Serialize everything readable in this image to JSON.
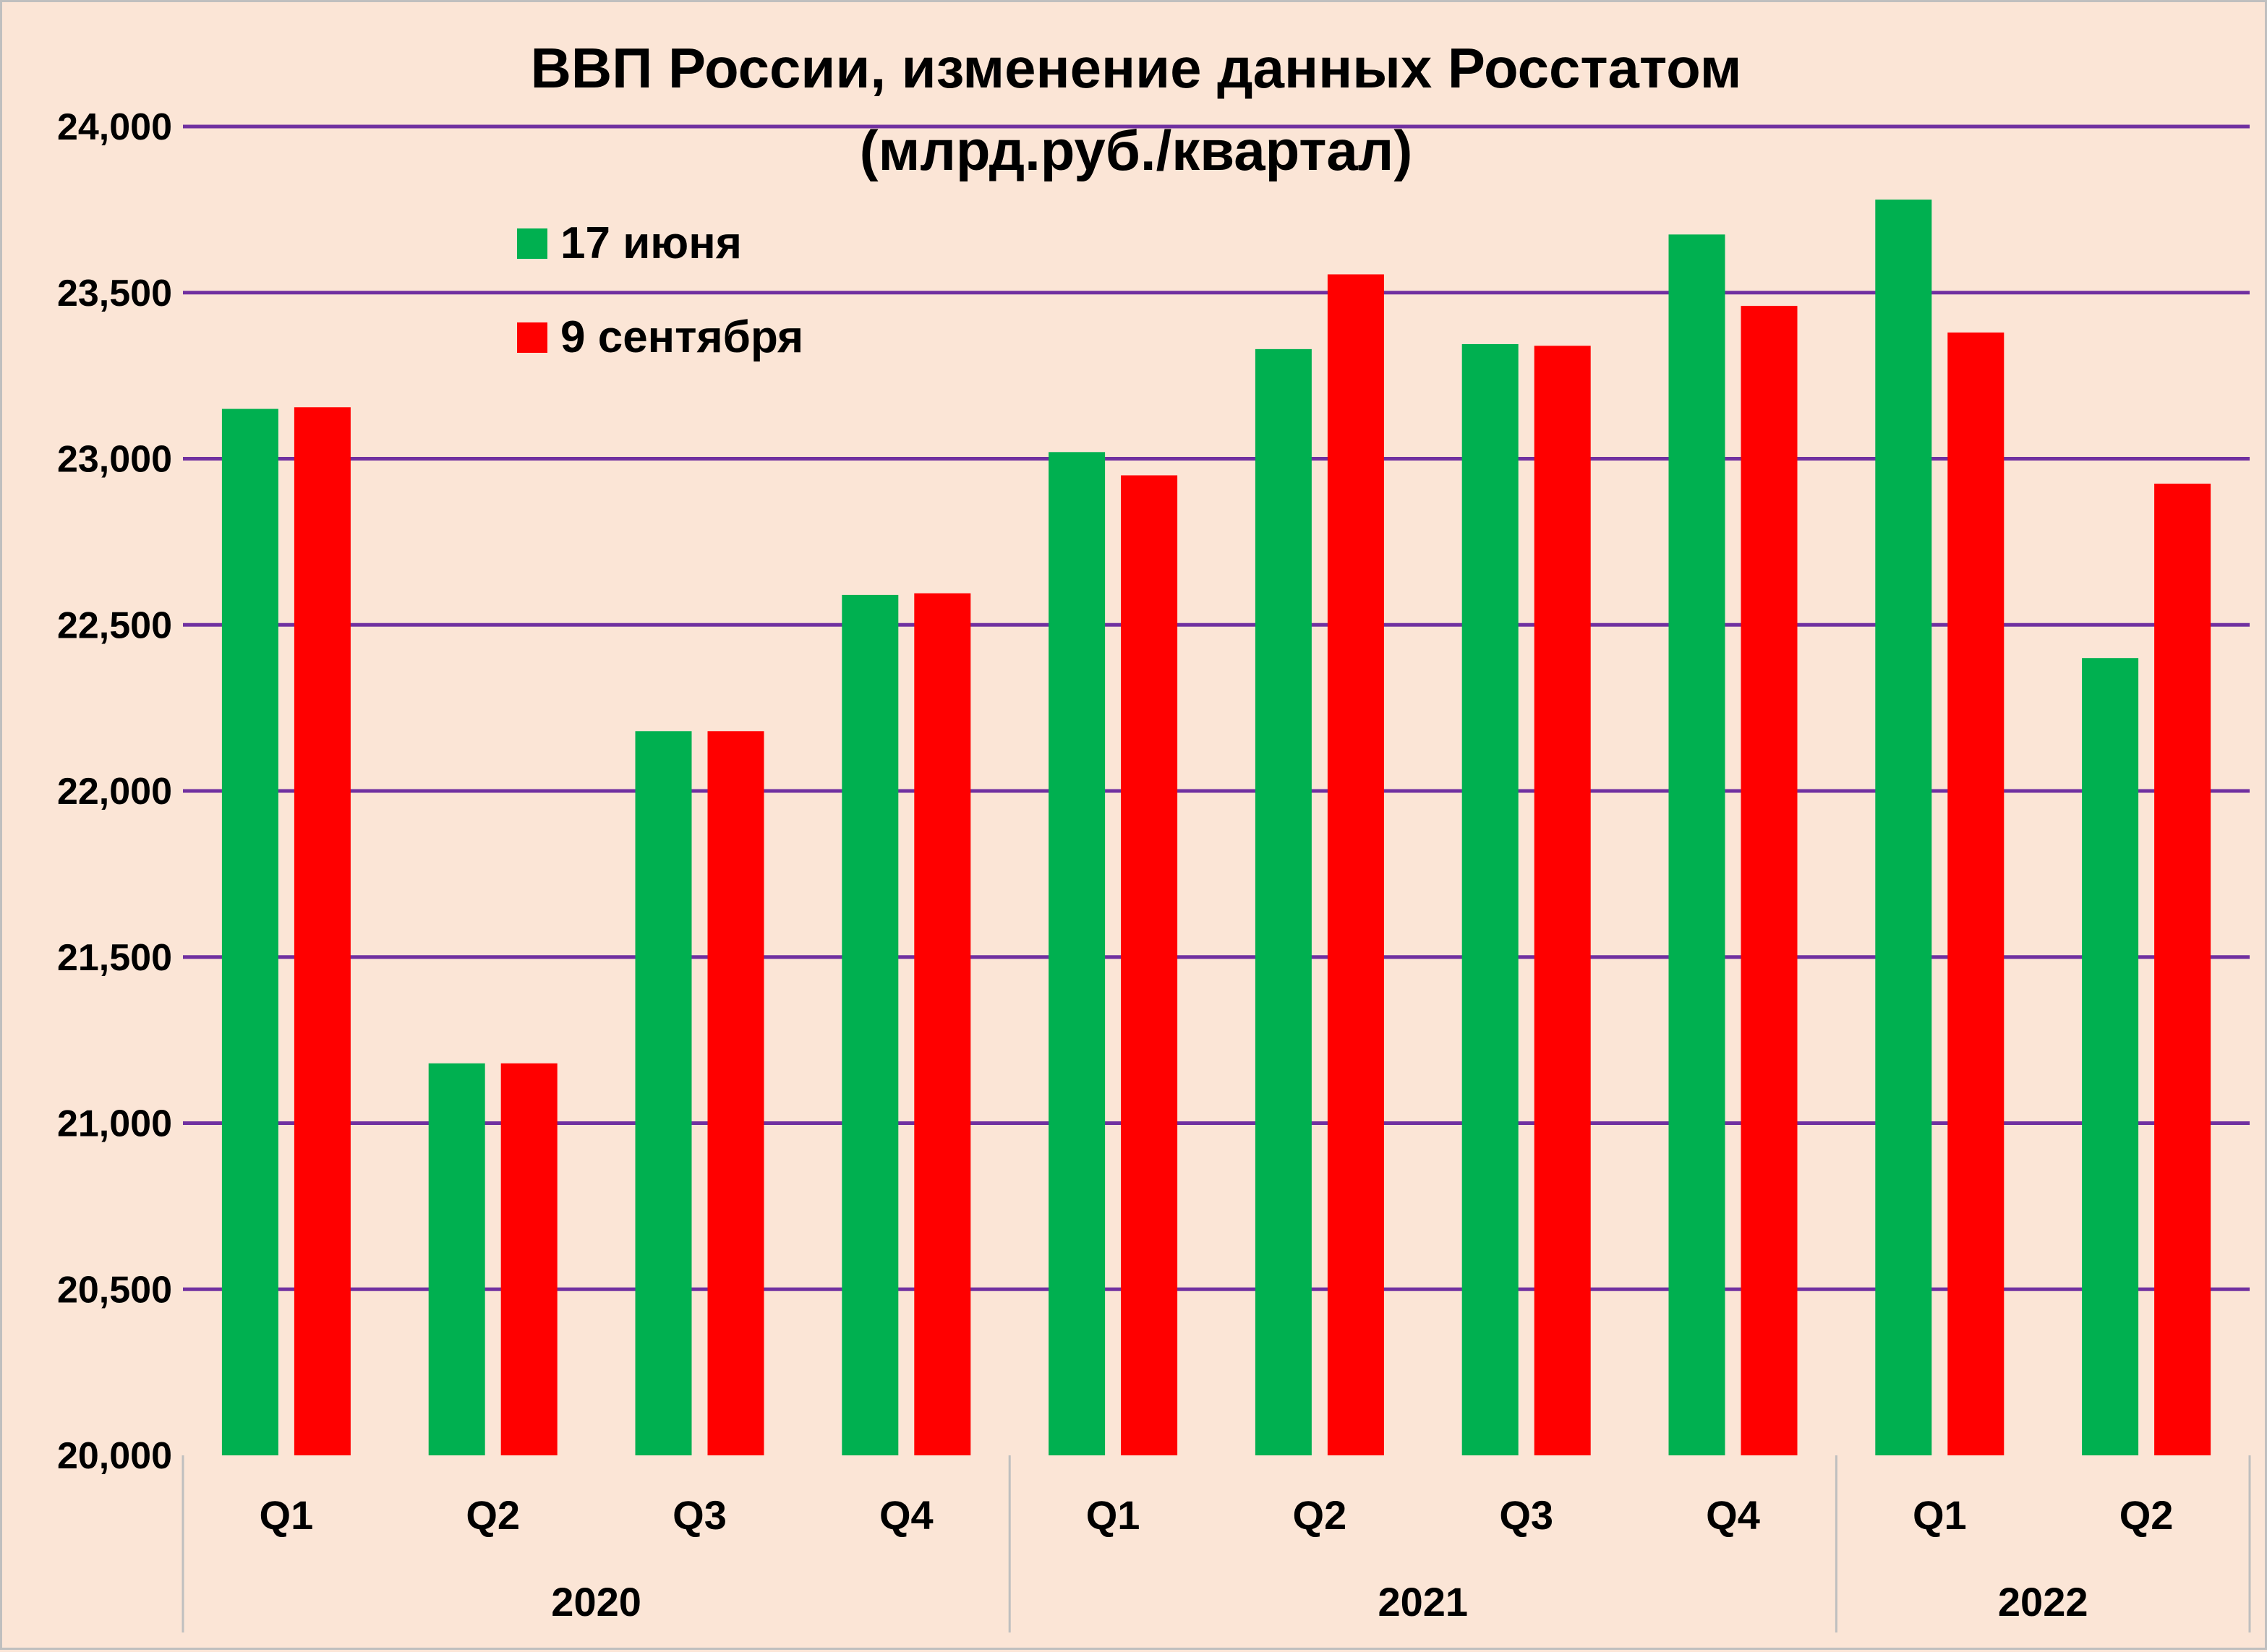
{
  "chart_data": {
    "type": "bar",
    "title": "ВВП России, изменение данных Росстатом",
    "subtitle": "(млрд.руб./квартал)",
    "categories": [
      "Q1",
      "Q2",
      "Q3",
      "Q4",
      "Q1",
      "Q2",
      "Q3",
      "Q4",
      "Q1",
      "Q2"
    ],
    "groups": [
      {
        "label": "2020",
        "count": 4
      },
      {
        "label": "2021",
        "count": 4
      },
      {
        "label": "2022",
        "count": 2
      }
    ],
    "series": [
      {
        "name": "17 июня",
        "color": "#00b050",
        "values": [
          23150,
          21180,
          22180,
          22590,
          23020,
          23330,
          23345,
          23675,
          23780,
          22400
        ]
      },
      {
        "name": "9 сентября",
        "color": "#ff0000",
        "values": [
          23155,
          21180,
          22180,
          22595,
          22950,
          23555,
          23340,
          23460,
          23380,
          22925
        ]
      }
    ],
    "ylim": [
      20000,
      24000
    ],
    "yticks": [
      "20,000",
      "20,500",
      "21,000",
      "21,500",
      "22,000",
      "22,500",
      "23,000",
      "23,500",
      "24,000"
    ],
    "ytick_values": [
      20000,
      20500,
      21000,
      21500,
      22000,
      22500,
      23000,
      23500,
      24000
    ],
    "grid": true,
    "grid_color": "#7030a0",
    "background_color": "#fbe5d6",
    "legend_position": "top-left"
  }
}
